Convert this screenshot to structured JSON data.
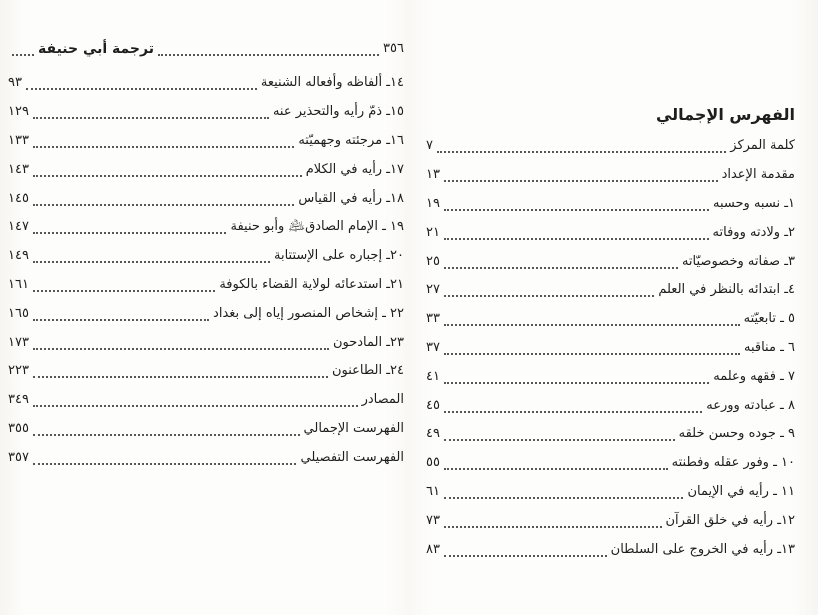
{
  "left_page": {
    "header": {
      "title": "ترجمة أبي حنيفة",
      "page": "٣٥٦"
    },
    "entries": [
      {
        "label": "١٤ـ ألفاظه وأفعاله الشنيعة",
        "page": "٩٣"
      },
      {
        "label": "١٥ـ ذمّ رأيه والتحذير عنه",
        "page": "١٢٩"
      },
      {
        "label": "١٦ـ مرجئته وجهميّته",
        "page": "١٣٣"
      },
      {
        "label": "١٧ـ رأيه في الكلام",
        "page": "١٤٣"
      },
      {
        "label": "١٨ـ رأيه في القياس",
        "page": "١٤٥"
      },
      {
        "label": "١٩ ـ الإمام الصادق﵇ وأبو حنيفة",
        "page": "١٤٧"
      },
      {
        "label": "٢٠ـ إجباره على الإستتابة",
        "page": "١٤٩"
      },
      {
        "label": "٢١ـ استدعائه لولاية القضاء بالكوفة",
        "page": "١٦١"
      },
      {
        "label": "٢٢ ـ إشخاص المنصور إياه إلى بغداد",
        "page": "١٦٥"
      },
      {
        "label": "٢٣ـ المادحون",
        "page": "١٧٣"
      },
      {
        "label": "٢٤ـ الطاعنون",
        "page": "٢٢٣"
      },
      {
        "label": "المصادر",
        "page": "٣٤٩"
      },
      {
        "label": "الفهرست الإجمالي",
        "page": "٣٥٥"
      },
      {
        "label": "الفهرست التفصيلي",
        "page": "٣٥٧"
      }
    ]
  },
  "right_page": {
    "heading": "الفهرس الإجمالي",
    "entries": [
      {
        "label": "كلمة المركز",
        "page": "٧"
      },
      {
        "label": "مقدمة الإعداد",
        "page": "١٣"
      },
      {
        "label": "١ـ نسبه وحسبه",
        "page": "١٩"
      },
      {
        "label": "٢ـ ولادته ووفاته",
        "page": "٢١"
      },
      {
        "label": "٣ـ صفاته وخصوصيّاته",
        "page": "٢٥"
      },
      {
        "label": "٤ـ ابتدائه بالنظر في العلم",
        "page": "٢٧"
      },
      {
        "label": "٥ ـ تابعيّته",
        "page": "٣٣"
      },
      {
        "label": "٦ ـ مناقبه",
        "page": "٣٧"
      },
      {
        "label": "٧ ـ فقهه وعلمه",
        "page": "٤١"
      },
      {
        "label": "٨ ـ عبادته وورعه",
        "page": "٤٥"
      },
      {
        "label": "٩ ـ جوده وحسن خلقه",
        "page": "٤٩"
      },
      {
        "label": "١٠ ـ وفور عقله وفطنته",
        "page": "٥٥"
      },
      {
        "label": "١١ ـ رأيه في الإيمان",
        "page": "٦١"
      },
      {
        "label": "١٢ـ رأيه في خلق القرآن",
        "page": "٧٣"
      },
      {
        "label": "١٣ـ رأيه في الخروج على السلطان",
        "page": "٨٣"
      }
    ]
  }
}
